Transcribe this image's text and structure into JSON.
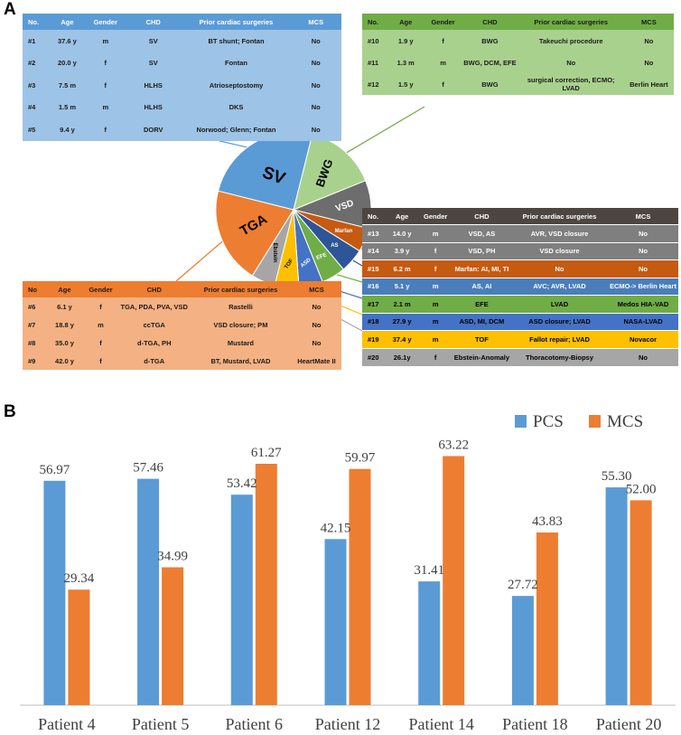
{
  "panel_a_label": "A",
  "panel_b_label": "B",
  "columns": [
    "No.",
    "Age",
    "Gender",
    "CHD",
    "Prior cardiac surgeries",
    "MCS"
  ],
  "columns_orange": [
    "No",
    "Age",
    "Gender",
    "CHD",
    "Prior cardiac surgeries",
    "MCS"
  ],
  "colors": {
    "sv": "#5b9bd5",
    "sv_header": "#5b9bd5",
    "sv_body": "#9dc3e6",
    "tga": "#ed7d31",
    "tga_header": "#ed7d31",
    "tga_body": "#f4b183",
    "bwg": "#a9d18e",
    "bwg_header": "#70ad47",
    "bwg_body": "#a9d18e",
    "dark_header": "#4d4640",
    "pcs": "#5b9bd5",
    "mcs": "#ed7d31"
  },
  "tables": {
    "sv": [
      [
        "#1",
        "37.6 y",
        "m",
        "SV",
        "BT shunt; Fontan",
        "No"
      ],
      [
        "#2",
        "20.0 y",
        "f",
        "SV",
        "Fontan",
        "No"
      ],
      [
        "#3",
        "7.5 m",
        "f",
        "HLHS",
        "Atrioseptostomy",
        "No"
      ],
      [
        "#4",
        "1.5 m",
        "m",
        "HLHS",
        "DKS",
        "No"
      ],
      [
        "#5",
        "9.4 y",
        "f",
        "DORV",
        "Norwood; Glenn; Fontan",
        "No"
      ]
    ],
    "bwg": [
      [
        "#10",
        "1.9 y",
        "f",
        "BWG",
        "Takeuchi procedure",
        "No"
      ],
      [
        "#11",
        "1.3 m",
        "m",
        "BWG, DCM, EFE",
        "No",
        "No"
      ],
      [
        "#12",
        "1.5 y",
        "f",
        "BWG",
        "surgical correction, ECMO; LVAD",
        "Berlin Heart"
      ]
    ],
    "tga": [
      [
        "#6",
        "6.1 y",
        "f",
        "TGA, PDA, PVA, VSD",
        "Rastelli",
        "No"
      ],
      [
        "#7",
        "18.8 y",
        "m",
        "ccTGA",
        "VSD closure; PM",
        "No"
      ],
      [
        "#8",
        "35.0 y",
        "f",
        "d-TGA, PH",
        "Mustard",
        "No"
      ],
      [
        "#9",
        "42.0 y",
        "f",
        "d-TGA",
        "BT, Mustard, LVAD",
        "HeartMate II"
      ]
    ],
    "other": [
      [
        "#13",
        "14.0 y",
        "m",
        "VSD, AS",
        "AVR, VSD closure",
        "No"
      ],
      [
        "#14",
        "3.9 y",
        "f",
        "VSD, PH",
        "VSD closure",
        "No"
      ],
      [
        "#15",
        "6.2 m",
        "f",
        "Marfan: AI, MI, TI",
        "No",
        "No"
      ],
      [
        "#16",
        "5.1 y",
        "m",
        "AS, AI",
        "AVC; AVR, LVAD",
        "ECMO-> Berlin Heart"
      ],
      [
        "#17",
        "2.1 m",
        "m",
        "EFE",
        "LVAD",
        "Medos HIA-VAD"
      ],
      [
        "#18",
        "27.9 y",
        "m",
        "ASD, MI, DCM",
        "ASD closure; LVAD",
        "NASA-LVAD"
      ],
      [
        "#19",
        "37.4 y",
        "m",
        "TOF",
        "Fallot repair; LVAD",
        "Novacor"
      ],
      [
        "#20",
        "26.1y",
        "f",
        "Ebstein-Anomaly",
        "Thoracotomy-Biopsy",
        "No"
      ]
    ],
    "other_colors": [
      "#7f7f7f",
      "#7f7f7f",
      "#c55a11",
      "#4a7ebb",
      "#70ad47",
      "#4472c4",
      "#ffc000",
      "#a6a6a6"
    ],
    "other_text_colors": [
      "#ffffff",
      "#ffffff",
      "#ffffff",
      "#ffffff",
      "#000000",
      "#000000",
      "#000000",
      "#000000"
    ]
  },
  "chart_data": [
    {
      "type": "pie",
      "title": "",
      "categories": [
        "BWG",
        "VSD",
        "Marfan",
        "AS",
        "EFE",
        "ASD",
        "TOF",
        "Ebstein",
        "TGA",
        "SV"
      ],
      "values": [
        3,
        2,
        1,
        1,
        1,
        1,
        1,
        1,
        4,
        5
      ],
      "colors": [
        "#a9d18e",
        "#6d6d6d",
        "#c55a11",
        "#2e5597",
        "#70ad47",
        "#4472c4",
        "#ffc000",
        "#a6a6a6",
        "#ed7d31",
        "#5b9bd5"
      ]
    },
    {
      "type": "bar",
      "title": "",
      "categories": [
        "Patient 4",
        "Patient 5",
        "Patient 6",
        "Patient 12",
        "Patient 14",
        "Patient 18",
        "Patient 20"
      ],
      "series": [
        {
          "name": "PCS",
          "values": [
            56.97,
            57.46,
            53.42,
            42.15,
            31.41,
            27.72,
            55.3
          ],
          "labels": [
            "56.97",
            "57.46",
            "53.42",
            "42.15",
            "31.41",
            "27.72",
            "55.30"
          ]
        },
        {
          "name": "MCS",
          "values": [
            29.34,
            34.99,
            61.27,
            59.97,
            63.22,
            43.83,
            52.0
          ],
          "labels": [
            "29.34",
            "34.99",
            "61.27",
            "59.97",
            "63.22",
            "43.83",
            "52.00"
          ]
        }
      ],
      "xlabel": "",
      "ylabel": "",
      "ylim": [
        0,
        70
      ],
      "legend": "top-right"
    }
  ]
}
